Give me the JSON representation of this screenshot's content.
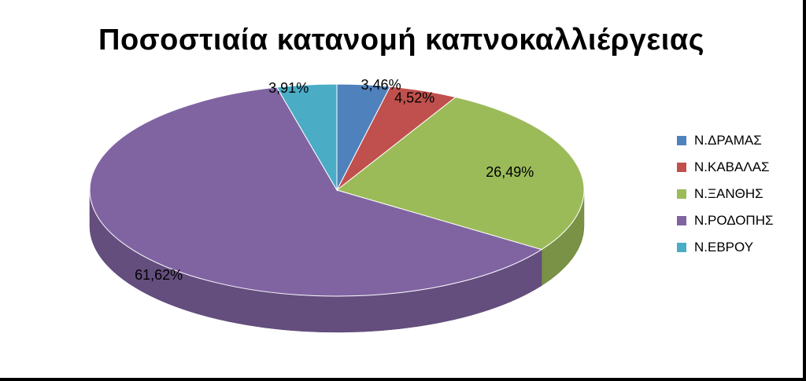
{
  "chart_data": {
    "type": "pie",
    "title": "Ποσοστιαία κατανομή καπνοκαλλιέργειας",
    "categories": [
      "Ν.ΔΡΑΜΑΣ",
      "Ν.ΚΑΒΑΛΑΣ",
      "Ν.ΞΑΝΘΗΣ",
      "Ν.ΡΟΔΟΠΗΣ",
      "Ν.ΕΒΡΟΥ"
    ],
    "values": [
      3.46,
      4.52,
      26.49,
      61.62,
      3.91
    ],
    "data_labels": [
      "3,46%",
      "4,52%",
      "26,49%",
      "61,62%",
      "3,91%"
    ],
    "colors": [
      "#4F81BD",
      "#C0504D",
      "#9BBB59",
      "#8064A2",
      "#4BACC6"
    ],
    "legend_position": "right",
    "style": "3d"
  }
}
